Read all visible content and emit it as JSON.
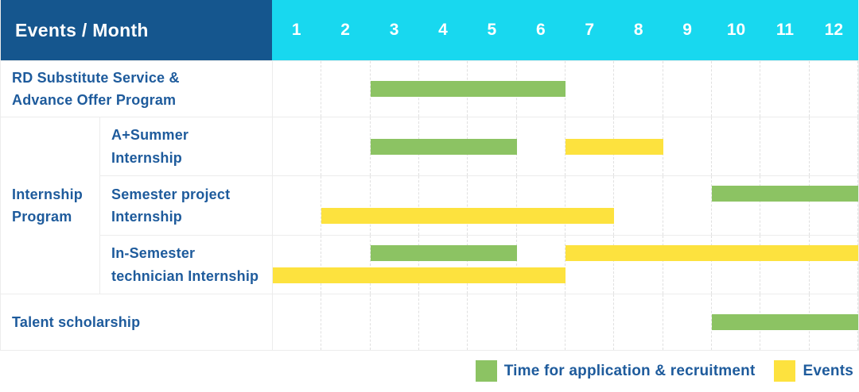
{
  "chart_data": {
    "type": "table",
    "subtype": "gantt-schedule",
    "corner_title": "Events / Month",
    "x_axis": {
      "label": "Month",
      "ticks": [
        "1",
        "2",
        "3",
        "4",
        "5",
        "6",
        "7",
        "8",
        "9",
        "10",
        "11",
        "12"
      ],
      "range": [
        1,
        12
      ]
    },
    "legend": [
      {
        "name": "Time for application & recruitment",
        "color_key": "green"
      },
      {
        "name": "Events",
        "color_key": "yellow"
      }
    ],
    "rows": [
      {
        "label": "RD Substitute Service &\nAdvance Offer Program",
        "lines": 1,
        "bars": [
          {
            "series": "Time for application & recruitment",
            "color_key": "green",
            "start_month": 3,
            "end_month": 6,
            "line": 0
          }
        ]
      },
      {
        "group_label": "Internship\nProgram",
        "children": [
          {
            "label": "A+Summer\nInternship",
            "lines": 1,
            "bars": [
              {
                "series": "Time for application & recruitment",
                "color_key": "green",
                "start_month": 3,
                "end_month": 5,
                "line": 0
              },
              {
                "series": "Events",
                "color_key": "yellow",
                "start_month": 7,
                "end_month": 8,
                "line": 0
              }
            ]
          },
          {
            "label": "Semester project\nInternship",
            "lines": 2,
            "bars": [
              {
                "series": "Time for application & recruitment",
                "color_key": "green",
                "start_month": 10,
                "end_month": 12,
                "line": 0
              },
              {
                "series": "Events",
                "color_key": "yellow",
                "start_month": 2,
                "end_month": 7,
                "line": 1
              }
            ]
          },
          {
            "label": "In-Semester\ntechnician Internship",
            "lines": 2,
            "bars": [
              {
                "series": "Time for application & recruitment",
                "color_key": "green",
                "start_month": 3,
                "end_month": 5,
                "line": 0
              },
              {
                "series": "Events",
                "color_key": "yellow",
                "start_month": 7,
                "end_month": 12,
                "line": 0
              },
              {
                "series": "Events",
                "color_key": "yellow",
                "start_month": 1,
                "end_month": 6,
                "line": 1
              }
            ]
          }
        ]
      },
      {
        "label": "Talent scholarship",
        "lines": 1,
        "bars": [
          {
            "series": "Time for application & recruitment",
            "color_key": "green",
            "start_month": 10,
            "end_month": 12,
            "line": 0
          }
        ]
      }
    ]
  },
  "colors": {
    "header_bg": "#15568E",
    "months_bg": "#18D8EF",
    "green": "#8CC363",
    "yellow": "#FDE23E",
    "label_text": "#1E5B9C",
    "border": "#ECECEC",
    "gridline": "#E0E0E0"
  }
}
